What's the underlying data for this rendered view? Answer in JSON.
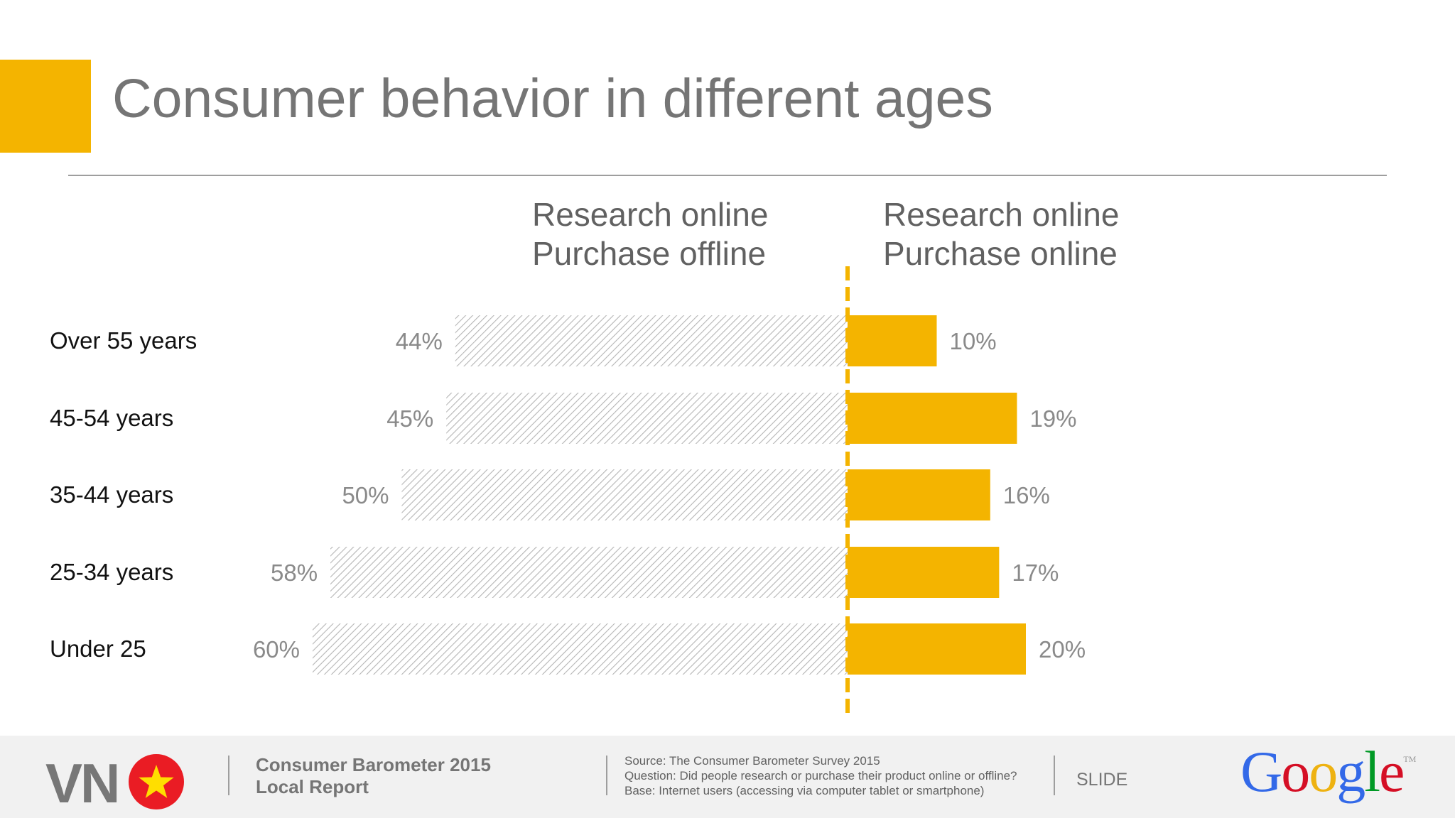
{
  "slide": {
    "title": "Consumer behavior in different ages"
  },
  "colors": {
    "accent": "#f4b400",
    "hatch": "#b5b5b5"
  },
  "chart_data": {
    "type": "bar",
    "orientation": "horizontal-diverging",
    "categories": [
      "Over 55 years",
      "45-54 years",
      "35-44 years",
      "25-34 years",
      "Under 25"
    ],
    "series": [
      {
        "name": "Research online Purchase offline",
        "name_lines": [
          "Research online",
          "Purchase offline"
        ],
        "values": [
          44,
          45,
          50,
          58,
          60
        ],
        "labels": [
          "44%",
          "45%",
          "50%",
          "58%",
          "60%"
        ],
        "color": "#b5b5b5",
        "pattern": "diagonal-hatch",
        "direction": "left"
      },
      {
        "name": "Research online Purchase online",
        "name_lines": [
          "Research online",
          "Purchase online"
        ],
        "values": [
          10,
          19,
          16,
          17,
          20
        ],
        "labels": [
          "10%",
          "19%",
          "16%",
          "17%",
          "20%"
        ],
        "color": "#f4b400",
        "direction": "right"
      }
    ],
    "unit": "%",
    "baseline": "dashed yellow vertical line"
  },
  "footer": {
    "brand_text": "VN",
    "flag_icon": "vietnam-flag-icon",
    "report_lines": [
      "Consumer Barometer 2015",
      "Local Report"
    ],
    "source_lines": [
      "Source: The Consumer Barometer Survey 2015",
      "Question:  Did people research or purchase their product online or offline?",
      "Base: Internet users (accessing via computer  tablet or smartphone)"
    ],
    "slide_label": "SLIDE",
    "logo_text": "Google",
    "logo_tm": "TM"
  }
}
